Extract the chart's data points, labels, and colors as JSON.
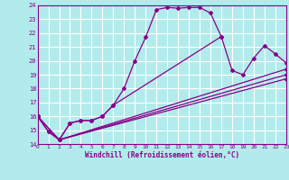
{
  "xlabel": "Windchill (Refroidissement éolien,°C)",
  "bg_color": "#b2ebeb",
  "grid_color": "#ffffff",
  "line_color": "#880088",
  "border_color": "#880088",
  "xmin": 0,
  "xmax": 23,
  "ymin": 14,
  "ymax": 24,
  "yticks": [
    14,
    15,
    16,
    17,
    18,
    19,
    20,
    21,
    22,
    23,
    24
  ],
  "xticks": [
    0,
    1,
    2,
    3,
    4,
    5,
    6,
    7,
    8,
    9,
    10,
    11,
    12,
    13,
    14,
    15,
    16,
    17,
    18,
    19,
    20,
    21,
    22,
    23
  ],
  "line1_x": [
    0,
    1,
    2,
    3,
    4,
    5,
    6,
    7,
    8,
    9,
    10,
    11,
    12,
    13,
    14,
    15,
    16,
    17
  ],
  "line1_y": [
    16.0,
    14.9,
    14.3,
    15.5,
    15.7,
    15.7,
    16.0,
    16.8,
    18.0,
    20.0,
    21.7,
    23.7,
    23.85,
    23.8,
    23.85,
    23.85,
    23.45,
    21.75
  ],
  "line2_x": [
    0,
    1,
    2,
    3,
    4,
    5,
    6,
    7,
    17,
    18,
    19,
    20,
    21,
    22,
    23
  ],
  "line2_y": [
    16.0,
    14.9,
    14.3,
    15.5,
    15.7,
    15.7,
    16.0,
    16.8,
    21.75,
    19.3,
    19.0,
    20.2,
    21.1,
    20.5,
    19.85
  ],
  "line3_x": [
    0,
    2,
    23
  ],
  "line3_y": [
    16.0,
    14.3,
    19.4
  ],
  "line4_x": [
    0,
    2,
    23
  ],
  "line4_y": [
    16.0,
    14.3,
    19.0
  ],
  "line5_x": [
    2,
    23
  ],
  "line5_y": [
    14.3,
    18.7
  ]
}
